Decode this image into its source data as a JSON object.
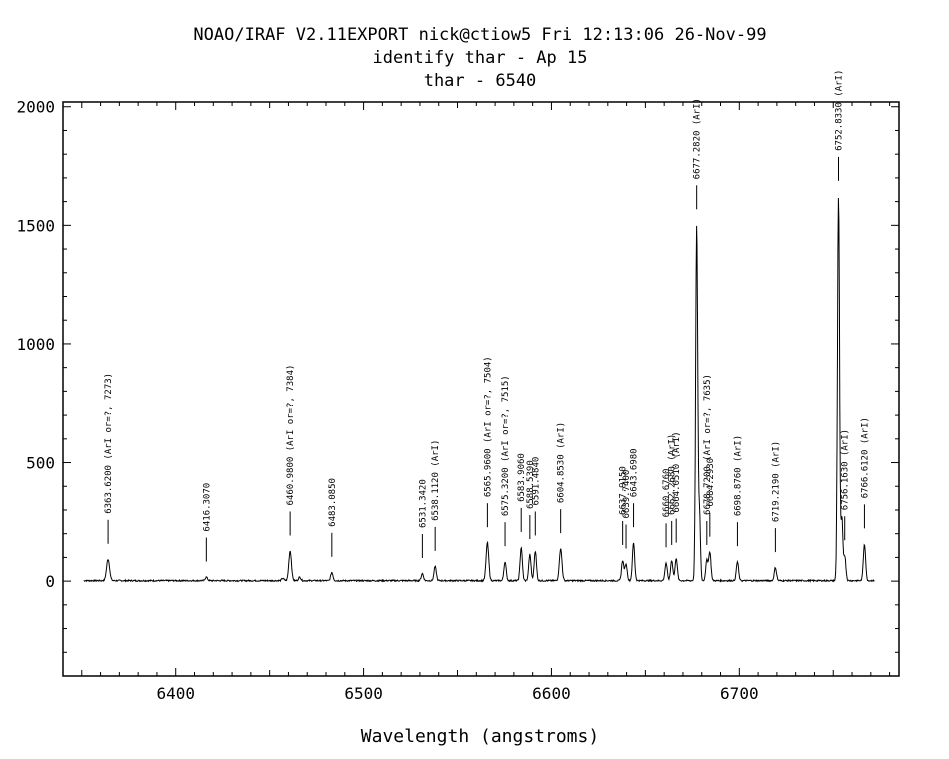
{
  "header": {
    "line1": "NOAO/IRAF V2.11EXPORT nick@ctiow5 Fri 12:13:06 26-Nov-99",
    "line2": "identify thar - Ap 15",
    "line3": "thar - 6540"
  },
  "chart_data": {
    "type": "line",
    "title": "thar - 6540",
    "xlabel": "Wavelength (angstroms)",
    "ylabel": "",
    "xlim": [
      6340,
      6785
    ],
    "ylim": [
      -400,
      2020
    ],
    "xticks": [
      6400,
      6500,
      6600,
      6700
    ],
    "yticks": [
      0,
      500,
      1000,
      1500,
      2000
    ],
    "grid": false,
    "data_start": 6351,
    "data_end": 6772,
    "baseline": 2,
    "peaks": [
      {
        "x": 6364,
        "y": 90,
        "w": 0.8
      },
      {
        "x": 6416.3,
        "y": 15,
        "w": 0.6
      },
      {
        "x": 6457,
        "y": 10,
        "w": 0.6
      },
      {
        "x": 6460.9,
        "y": 125,
        "w": 0.7
      },
      {
        "x": 6466,
        "y": 15,
        "w": 0.6
      },
      {
        "x": 6483.1,
        "y": 35,
        "w": 0.6
      },
      {
        "x": 6531.3,
        "y": 30,
        "w": 0.6
      },
      {
        "x": 6538.1,
        "y": 60,
        "w": 0.6
      },
      {
        "x": 6565.9,
        "y": 160,
        "w": 0.7
      },
      {
        "x": 6575.3,
        "y": 80,
        "w": 0.6
      },
      {
        "x": 6583.9,
        "y": 140,
        "w": 0.6
      },
      {
        "x": 6588.5,
        "y": 110,
        "w": 0.6
      },
      {
        "x": 6591.4,
        "y": 125,
        "w": 0.6
      },
      {
        "x": 6604.9,
        "y": 135,
        "w": 0.7
      },
      {
        "x": 6637.9,
        "y": 85,
        "w": 0.6
      },
      {
        "x": 6639.7,
        "y": 70,
        "w": 0.6
      },
      {
        "x": 6643.7,
        "y": 160,
        "w": 0.6
      },
      {
        "x": 6661.0,
        "y": 75,
        "w": 0.6
      },
      {
        "x": 6664.0,
        "y": 85,
        "w": 0.6
      },
      {
        "x": 6666.4,
        "y": 95,
        "w": 0.6
      },
      {
        "x": 6677.3,
        "y": 1500,
        "w": 0.55
      },
      {
        "x": 6678.8,
        "y": 280,
        "w": 0.5
      },
      {
        "x": 6682.7,
        "y": 85,
        "w": 0.6
      },
      {
        "x": 6684.3,
        "y": 120,
        "w": 0.6
      },
      {
        "x": 6699.0,
        "y": 80,
        "w": 0.6
      },
      {
        "x": 6719.2,
        "y": 55,
        "w": 0.6
      },
      {
        "x": 6752.8,
        "y": 1620,
        "w": 0.55
      },
      {
        "x": 6754.6,
        "y": 260,
        "w": 0.5
      },
      {
        "x": 6756.1,
        "y": 105,
        "w": 0.6
      },
      {
        "x": 6766.6,
        "y": 155,
        "w": 0.6
      }
    ],
    "annotations": [
      {
        "x": 6364,
        "label": "6363.6200 (ArI or=?, 7273)"
      },
      {
        "x": 6416.3,
        "label": "6416.3070"
      },
      {
        "x": 6460.9,
        "label": "6460.9800 (ArI or=?, 7384)"
      },
      {
        "x": 6483.1,
        "label": "6483.0850"
      },
      {
        "x": 6531.3,
        "label": "6531.3420"
      },
      {
        "x": 6538.1,
        "label": "6538.1120 (ArI)"
      },
      {
        "x": 6565.9,
        "label": "6565.9600 (ArI or=?, 7504)"
      },
      {
        "x": 6575.3,
        "label": "6575.3200 (ArI or=?, 7515)"
      },
      {
        "x": 6583.9,
        "label": "6583.9060"
      },
      {
        "x": 6588.5,
        "label": "6588.5390"
      },
      {
        "x": 6591.4,
        "label": "6591.4840"
      },
      {
        "x": 6604.9,
        "label": "6604.8530 (ArI)"
      },
      {
        "x": 6637.9,
        "label": "6637.9150"
      },
      {
        "x": 6639.7,
        "label": "6639.7400"
      },
      {
        "x": 6643.7,
        "label": "6643.6980"
      },
      {
        "x": 6661.0,
        "label": "6660.6760"
      },
      {
        "x": 6664.0,
        "label": "6662.2680 (ArI)"
      },
      {
        "x": 6666.4,
        "label": "6664.0510 (ArI)"
      },
      {
        "x": 6677.3,
        "label": "6677.2820 (ArI)"
      },
      {
        "x": 6682.7,
        "label": "6678.7200 (ArI or=?, 7635)"
      },
      {
        "x": 6684.3,
        "label": "6684.2930"
      },
      {
        "x": 6699.0,
        "label": "6698.8760 (ArI)"
      },
      {
        "x": 6719.2,
        "label": "6719.2190 (ArI)"
      },
      {
        "x": 6752.8,
        "label": "6752.8330 (ArI)"
      },
      {
        "x": 6756.1,
        "label": "6756.1630 (ArI)"
      },
      {
        "x": 6766.6,
        "label": "6766.6120 (ArI)"
      }
    ]
  }
}
